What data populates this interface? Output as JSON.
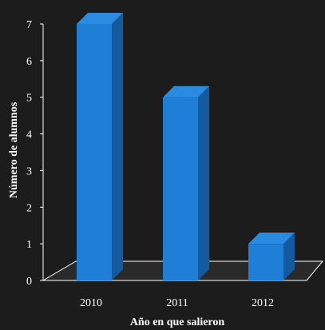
{
  "chart_data": {
    "type": "bar",
    "categories": [
      "2010",
      "2011",
      "2012"
    ],
    "values": [
      7,
      5,
      1
    ],
    "title": "",
    "xlabel": "Año en que salieron",
    "ylabel": "Número de alumnos",
    "ylim": [
      0,
      7
    ],
    "yticks": [
      "0",
      "1",
      "2",
      "3",
      "4",
      "5",
      "6",
      "7"
    ],
    "grid": false,
    "legend": "none",
    "colors": {
      "background": "#1c1c1c",
      "bar_front": "#1f7fd6",
      "bar_side": "#135a9e",
      "bar_top": "#2a8be0",
      "floor": "#2a2a2a",
      "axis": "#ffffff"
    }
  }
}
